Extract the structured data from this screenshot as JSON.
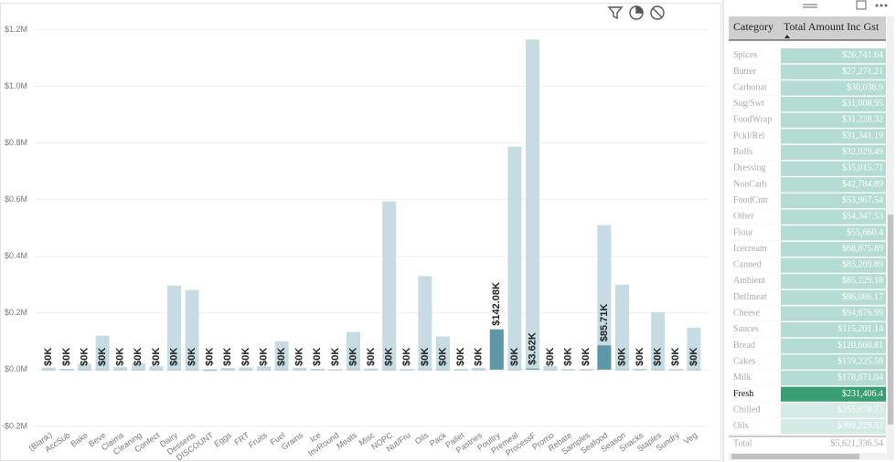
{
  "chart_data": {
    "type": "bar",
    "categories": [
      "(Blank)",
      "AccSub",
      "Bake",
      "Beve",
      "Claims",
      "Cleaning",
      "Confect",
      "Dairy",
      "Desserts",
      "DISCOUNT",
      "Eggs",
      "FRT",
      "Fruits",
      "Fuel",
      "Grains",
      "Ice",
      "InvRound",
      "Meats",
      "Misc",
      "NOPC",
      "Nut/Fru",
      "Oils",
      "Pack",
      "Pallet",
      "Pastries",
      "Poultry",
      "Premeal",
      "ProcessF",
      "Promo",
      "Rebate",
      "Samples",
      "Seafood",
      "Season",
      "Snacks",
      "Staples",
      "Sundry",
      "Veg"
    ],
    "series": [
      {
        "color": "#c7dce2",
        "values": [
          7000,
          3000,
          20000,
          120000,
          10000,
          22000,
          13000,
          297000,
          281000,
          -5000,
          6000,
          8000,
          12000,
          100000,
          7000,
          3000,
          1000,
          133000,
          4000,
          594000,
          2000,
          330000,
          117000,
          2000,
          6000,
          142080,
          787000,
          1165000,
          13000,
          2000,
          2000,
          510000,
          300000,
          3000,
          203000,
          2000,
          148000
        ]
      },
      {
        "color": "#5e97a7",
        "values": [
          0,
          0,
          0,
          0,
          0,
          0,
          0,
          0,
          0,
          0,
          0,
          0,
          0,
          0,
          0,
          0,
          0,
          0,
          0,
          0,
          0,
          0,
          0,
          0,
          0,
          142080,
          0,
          3620,
          0,
          0,
          0,
          85710,
          0,
          0,
          0,
          0,
          0
        ],
        "value_labels": [
          "$0K",
          "$0K",
          "$0K",
          "$0K",
          "$0K",
          "$0K",
          "$0K",
          "$0K",
          "$0K",
          "$0K",
          "$0K",
          "$0K",
          "$0K",
          "$0K",
          "$0K",
          "$0K",
          "$0K",
          "$0K",
          "$0K",
          "$0K",
          "$0K",
          "$0K",
          "$0K",
          "$0K",
          "$0K",
          "$142.08K",
          "$0K",
          "$3.62K",
          "$0K",
          "$0K",
          "$0K",
          "$85.71K",
          "$0K",
          "$0K",
          "$0K",
          "$0K",
          "$0K"
        ]
      }
    ],
    "ylim": [
      -210000,
      1240000
    ],
    "yticks": [
      {
        "value": -200000,
        "label": "-$0.2M"
      },
      {
        "value": 0,
        "label": "$0.0M"
      },
      {
        "value": 200000,
        "label": "$0.2M"
      },
      {
        "value": 400000,
        "label": "$0.4M"
      },
      {
        "value": 600000,
        "label": "$0.6M"
      },
      {
        "value": 800000,
        "label": "$0.8M"
      },
      {
        "value": 1000000,
        "label": "$1.0M"
      },
      {
        "value": 1200000,
        "label": "$1.2M"
      }
    ],
    "grid": true
  },
  "table": {
    "columns": [
      "Category",
      "Total Amount Inc Gst"
    ],
    "rows": [
      [
        "Spices",
        "$26,741.64"
      ],
      [
        "Butter",
        "$27,271.21"
      ],
      [
        "Carbonat",
        "$30,038.9"
      ],
      [
        "Sug/Swt",
        "$31,008.95"
      ],
      [
        "FoodWrap",
        "$31,228.32"
      ],
      [
        "Pckl/Rel",
        "$31,341.19"
      ],
      [
        "Rolls",
        "$32,029.49"
      ],
      [
        "Dressing",
        "$35,015.71"
      ],
      [
        "NonCarb",
        "$42,784.89"
      ],
      [
        "FoodCntr",
        "$53,967.54"
      ],
      [
        "Other",
        "$54,347.53"
      ],
      [
        "Flour",
        "$55,660.4"
      ],
      [
        "Icecream",
        "$68,875.89"
      ],
      [
        "Canned",
        "$85,209.89"
      ],
      [
        "Ambient",
        "$85,229.18"
      ],
      [
        "Delimeat",
        "$86,086.17"
      ],
      [
        "Cheese",
        "$94,676.99"
      ],
      [
        "Sauces",
        "$115,201.14"
      ],
      [
        "Bread",
        "$120,660.81"
      ],
      [
        "Cakes",
        "$159,225.58"
      ],
      [
        "Milk",
        "$178,671.04"
      ],
      [
        "Fresh",
        "$231,406.4"
      ],
      [
        "Chilled",
        "$255,678.73"
      ],
      [
        "Oils",
        "$309,229.53"
      ]
    ],
    "total": [
      "Total",
      "$5,621,336.54"
    ],
    "selected_row": 21
  }
}
